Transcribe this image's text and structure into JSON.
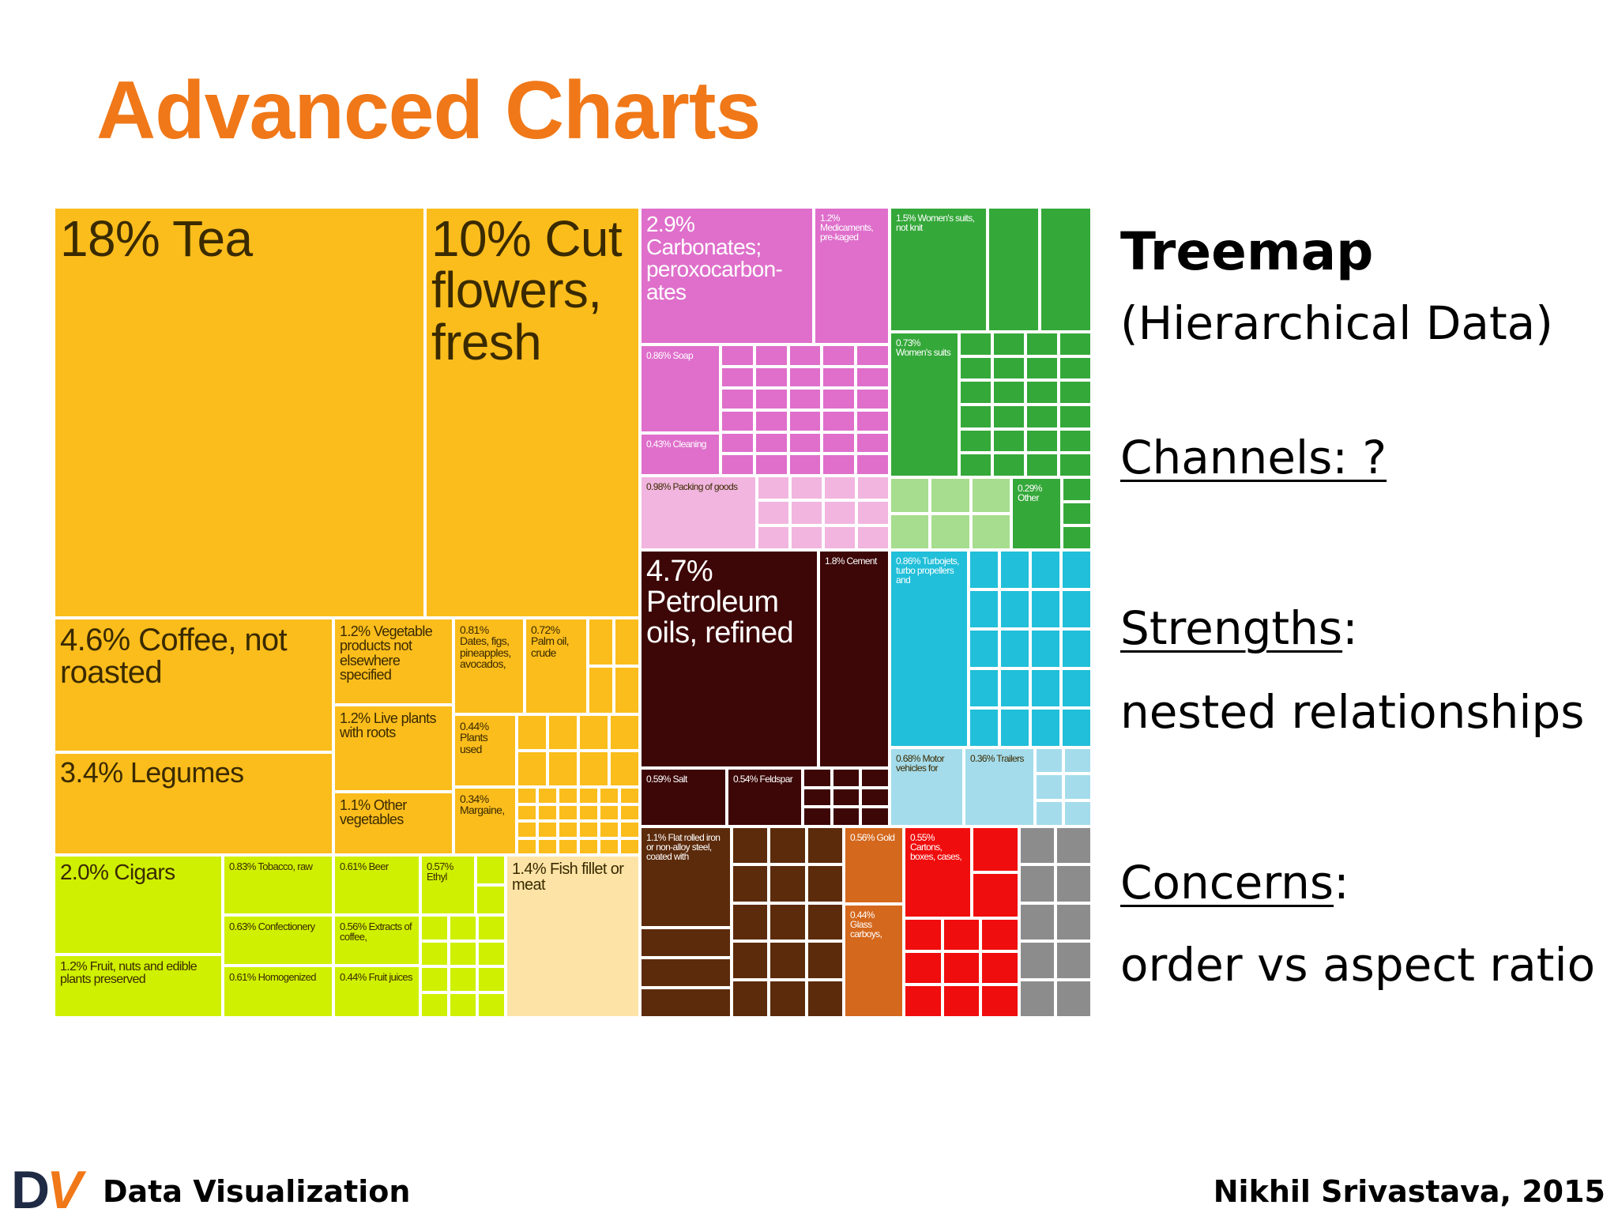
{
  "slide": {
    "title": "Advanced Charts",
    "title_color": "#f07818"
  },
  "sidebar": {
    "heading": "Treemap",
    "subheading": "(Hierarchical Data)",
    "channels_label": "Channels: ?",
    "strengths_label": "Strengths",
    "strengths_colon": ":",
    "strengths_text": "nested relationships",
    "concerns_label": "Concerns",
    "concerns_colon": ":",
    "concerns_text": "order vs aspect ratio"
  },
  "footer": {
    "logo_d": "D",
    "logo_v": "V",
    "course": "Data Visualization",
    "author": "Nikhil Srivastava, 2015"
  },
  "treemap": {
    "colors": {
      "orange": "#fbbd1c",
      "lime": "#cff000",
      "cream": "#fde4a6",
      "magenta": "#df6fcb",
      "pink": "#f1b5df",
      "green": "#35a83a",
      "lightgreen": "#a7dd8e",
      "darkbrown": "#3d0707",
      "cyan": "#21bfd9",
      "lightcyan": "#a4dceb",
      "brown": "#5c2b0c",
      "rust": "#d4681d",
      "red": "#f00d0d",
      "gray": "#8c8c8c"
    },
    "labels": [
      "18% Tea",
      "10% Cut flowers, fresh",
      "4.6% Coffee, not roasted",
      "3.4% Legumes",
      "1.2% Vegetable products not elsewhere specified",
      "1.2% Live plants with roots",
      "1.1% Other vegetables",
      "0.81% Dates, figs, pineapples, avocados,",
      "0.72% Palm oil, crude",
      "0.44% Plants used",
      "0.34% Margaine,",
      "2.0% Cigars",
      "0.83% Tobacco, raw",
      "0.63% Confectionery",
      "0.61% Homogenized",
      "1.2% Fruit, nuts and edible plants preserved",
      "0.61% Beer",
      "0.56% Extracts of coffee,",
      "0.44% Fruit juices",
      "0.57% Ethyl",
      "1.4% Fish fillet or meat",
      "2.9% Carbonates; peroxocarbon-ates",
      "1.2% Medicaments, pre-kaged",
      "0.86% Soap",
      "0.43% Cleaning",
      "0.98% Packing of goods",
      "1.5% Women's suits, not knit",
      "0.73% Women's suits",
      "0.29% Other",
      "4.7% Petroleum oils, refined",
      "1.8% Cement",
      "0.59% Salt",
      "0.54% Feldspar",
      "0.86% Turbojets, turbo propellers and",
      "0.68% Motor vehicles for",
      "0.36% Trailers",
      "1.1% Flat rolled iron or non-alloy steel, coated with",
      "0.56% Gold",
      "0.44% Glass carboys,",
      "0.55% Cartons, boxes, cases,"
    ]
  }
}
